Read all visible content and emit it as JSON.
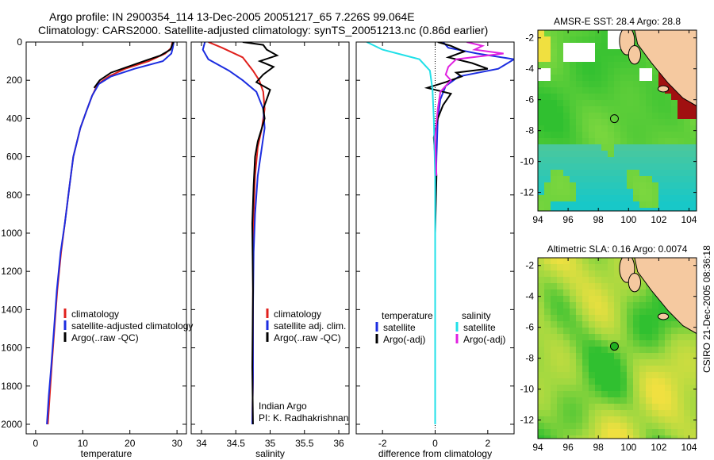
{
  "header": {
    "line1": "Argo profile: IN 2900354_114 13-Dec-2005 20051217_65 7.226S 99.064E",
    "line2": "Climatology: CARS2000. Satellite-adjusted climatology: synTS_20051213.nc (0.86d earlier)"
  },
  "side_label": "CSIRO 21-Dec-2005 08:36:18",
  "colors": {
    "climatology": "#e0201c",
    "satellite": "#1c2de0",
    "argo": "#000000",
    "argo_adj_sal": "#e020e0",
    "sat_sal": "#20e0e8",
    "land": "#f5c9a0",
    "nodata": "#ffffff",
    "marker_sst": "#1f6e1f",
    "marker_sla": "#20b020"
  },
  "chart_data": [
    {
      "id": "temperature",
      "type": "line",
      "xlabel": "temperature",
      "ylabel": "",
      "xlim": [
        -2,
        32
      ],
      "ylim": [
        2050,
        0
      ],
      "xticks": [
        0,
        10,
        20,
        30
      ],
      "yticks": [
        0,
        200,
        400,
        600,
        800,
        1000,
        1200,
        1400,
        1600,
        1800,
        2000
      ],
      "series": [
        {
          "name": "climatology",
          "color": "#e0201c",
          "x": [
            29.0,
            28.8,
            27.5,
            24.0,
            19.0,
            15.5,
            13.2,
            12.0,
            10.8,
            9.5,
            8.0,
            7.2,
            6.2,
            5.4,
            4.6,
            4.0,
            3.4,
            3.0,
            2.6
          ],
          "y": [
            0,
            30,
            60,
            100,
            140,
            180,
            220,
            280,
            360,
            450,
            600,
            750,
            950,
            1100,
            1300,
            1500,
            1700,
            1850,
            2000
          ]
        },
        {
          "name": "satellite-adjusted climatology",
          "color": "#1c2de0",
          "x": [
            29.3,
            29.1,
            28.8,
            27.0,
            21.0,
            16.0,
            13.4,
            12.0,
            10.8,
            9.5,
            8.0,
            7.2,
            6.2,
            5.3,
            4.5,
            3.9,
            3.3,
            2.8,
            2.4
          ],
          "y": [
            0,
            30,
            60,
            100,
            140,
            180,
            220,
            280,
            360,
            450,
            600,
            750,
            950,
            1100,
            1300,
            1500,
            1700,
            1850,
            2000
          ]
        },
        {
          "name": "Argo(..raw -QC)",
          "color": "#000000",
          "x": [
            29.2,
            28.6,
            26.5,
            23.0,
            19.5,
            16.0,
            13.6,
            12.4
          ],
          "y": [
            0,
            40,
            70,
            100,
            130,
            160,
            200,
            240
          ]
        }
      ],
      "legend": {
        "position": "lower-right",
        "entries": [
          "climatology",
          "satellite-adjusted climatology",
          "Argo(..raw -QC)"
        ]
      }
    },
    {
      "id": "salinity",
      "type": "line",
      "xlabel": "salinity",
      "ylabel": "",
      "xlim": [
        33.85,
        36.15
      ],
      "ylim": [
        2050,
        0
      ],
      "xticks": [
        34,
        34.5,
        35,
        35.5,
        36
      ],
      "xticklabels": [
        "34",
        "34.5",
        "35",
        "35.5",
        "36"
      ],
      "series": [
        {
          "name": "climatology",
          "color": "#e0201c",
          "x": [
            34.1,
            34.3,
            34.6,
            34.75,
            34.84,
            34.9,
            34.92,
            34.88,
            34.82,
            34.78,
            34.76,
            34.75,
            34.75,
            34.75,
            34.74
          ],
          "y": [
            0,
            30,
            80,
            150,
            200,
            260,
            350,
            450,
            550,
            700,
            900,
            1100,
            1400,
            1750,
            2000
          ]
        },
        {
          "name": "satellite adj. clim.",
          "color": "#1c2de0",
          "x": [
            34.05,
            34.02,
            34.1,
            34.4,
            34.6,
            34.8,
            34.9,
            34.92,
            34.88,
            34.82,
            34.78,
            34.76,
            34.75,
            34.75,
            34.74
          ],
          "y": [
            0,
            40,
            90,
            150,
            200,
            260,
            350,
            450,
            550,
            700,
            900,
            1100,
            1400,
            1750,
            2000
          ]
        },
        {
          "name": "Argo(..raw -QC)",
          "color": "#000000",
          "x": [
            34.6,
            34.9,
            34.95,
            35.1,
            34.85,
            35.05,
            34.9,
            34.8,
            35.0,
            34.95,
            34.9,
            34.92,
            34.88,
            34.82,
            34.78,
            34.76,
            34.74,
            34.75,
            34.74,
            34.75
          ],
          "y": [
            0,
            15,
            40,
            70,
            100,
            130,
            170,
            210,
            250,
            300,
            350,
            400,
            450,
            520,
            600,
            750,
            950,
            1300,
            1700,
            2000
          ]
        }
      ],
      "legend": {
        "position": "lower-right",
        "entries": [
          "climatology",
          "satellite adj. clim.",
          "Argo(..raw -QC)"
        ]
      },
      "annotation": [
        "Indian Argo",
        "PI: K. Radhakrishnan"
      ]
    },
    {
      "id": "difference",
      "type": "line",
      "xlabel": "difference from climatology",
      "ylabel": "",
      "xlim": [
        -3,
        3
      ],
      "ylim": [
        2050,
        0
      ],
      "xticks": [
        -2,
        0,
        2
      ],
      "xticklabels": [
        "-2",
        "0",
        "2"
      ],
      "legend_headers": [
        "temperature",
        "salinity"
      ],
      "series": [
        {
          "name": "temperature satellite",
          "color": "#1c2de0",
          "x": [
            0.3,
            0.5,
            1.6,
            3.0,
            2.4,
            0.9,
            0.4,
            0.2,
            0.1,
            0.05,
            0.0,
            0.0,
            0.0
          ],
          "y": [
            0,
            30,
            60,
            90,
            140,
            180,
            230,
            300,
            400,
            600,
            900,
            1400,
            2000
          ]
        },
        {
          "name": "temperature Argo(-adj)",
          "color": "#000000",
          "x": [
            0.1,
            0.6,
            1.1,
            0.5,
            1.4,
            2.0,
            0.8,
            1.0,
            0.4,
            -0.3,
            0.6,
            0.3,
            0.1,
            -0.05,
            0.05,
            0.0,
            0.0
          ],
          "y": [
            0,
            20,
            50,
            80,
            110,
            140,
            160,
            180,
            210,
            240,
            270,
            330,
            400,
            500,
            700,
            1000,
            1700
          ]
        },
        {
          "name": "salinity satellite",
          "color": "#20e0e8",
          "x": [
            -2.6,
            -2.0,
            -0.6,
            -0.2,
            -0.1,
            -0.05,
            0.0,
            0.0,
            0.0
          ],
          "y": [
            0,
            40,
            90,
            150,
            250,
            400,
            700,
            1200,
            2000
          ]
        },
        {
          "name": "salinity Argo(-adj)",
          "color": "#e020e0",
          "x": [
            1.2,
            1.8,
            1.5,
            2.6,
            0.8,
            0.5,
            0.4,
            0.6,
            0.2,
            0.1,
            0.0,
            0.05
          ],
          "y": [
            0,
            20,
            40,
            60,
            90,
            130,
            170,
            200,
            260,
            350,
            500,
            700
          ]
        }
      ],
      "legend": {
        "position": "lower-right",
        "entries": [
          "satellite",
          "Argo(-adj)",
          "satellite",
          "Argo(-adj)"
        ]
      }
    },
    {
      "id": "sst_map",
      "type": "heatmap",
      "title": "AMSR-E SST: 28.4 Argo: 28.8",
      "xlim": [
        94,
        104.5
      ],
      "ylim": [
        -13.2,
        -1.5
      ],
      "xticks": [
        94,
        96,
        98,
        100,
        102,
        104
      ],
      "yticks": [
        -2,
        -4,
        -6,
        -8,
        -10,
        -12
      ],
      "marker": {
        "lon": 99.064,
        "lat": -7.226
      }
    },
    {
      "id": "sla_map",
      "type": "heatmap",
      "title": "Altimetric SLA: 0.16 Argo: 0.0074",
      "xlim": [
        94,
        104.5
      ],
      "ylim": [
        -13.2,
        -1.5
      ],
      "xticks": [
        94,
        96,
        98,
        100,
        102,
        104
      ],
      "yticks": [
        -2,
        -4,
        -6,
        -8,
        -10,
        -12
      ],
      "marker": {
        "lon": 99.064,
        "lat": -7.226
      }
    }
  ]
}
